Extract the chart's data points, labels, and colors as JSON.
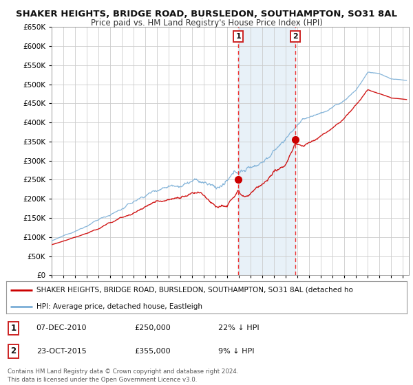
{
  "title": "SHAKER HEIGHTS, BRIDGE ROAD, BURSLEDON, SOUTHAMPTON, SO31 8AL",
  "subtitle": "Price paid vs. HM Land Registry's House Price Index (HPI)",
  "ylim": [
    0,
    650000
  ],
  "yticks": [
    0,
    50000,
    100000,
    150000,
    200000,
    250000,
    300000,
    350000,
    400000,
    450000,
    500000,
    550000,
    600000,
    650000
  ],
  "xlim_start": 1995.0,
  "xlim_end": 2025.5,
  "background_color": "#ffffff",
  "plot_bg_color": "#ffffff",
  "grid_color": "#cccccc",
  "red_line_color": "#cc0000",
  "blue_line_color": "#7aaed6",
  "sale1_x": 2010.93,
  "sale1_y": 250000,
  "sale1_label": "1",
  "sale2_x": 2015.81,
  "sale2_y": 355000,
  "sale2_label": "2",
  "vline_color": "#ee3333",
  "shade_color": "#cce0f0",
  "shade_alpha": 0.45,
  "legend_line1": "SHAKER HEIGHTS, BRIDGE ROAD, BURSLEDON, SOUTHAMPTON, SO31 8AL (detached ho",
  "legend_line2": "HPI: Average price, detached house, Eastleigh",
  "table_row1": [
    "1",
    "07-DEC-2010",
    "£250,000",
    "22% ↓ HPI"
  ],
  "table_row2": [
    "2",
    "23-OCT-2015",
    "£355,000",
    "9% ↓ HPI"
  ],
  "footnote": "Contains HM Land Registry data © Crown copyright and database right 2024.\nThis data is licensed under the Open Government Licence v3.0.",
  "title_fontsize": 9.5,
  "subtitle_fontsize": 8.5
}
